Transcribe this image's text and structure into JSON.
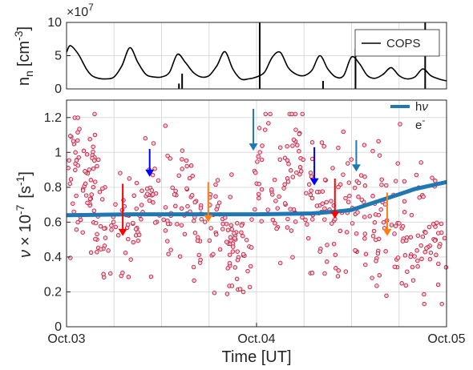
{
  "chart_data": [
    {
      "type": "line",
      "panel": "top",
      "ylabel": "n_n [cm^-3]",
      "ylabel_main": "n",
      "ylabel_sub": "n",
      "ylabel_unit": "[cm",
      "ylabel_exp": "-3",
      "ylabel_close": "]",
      "y_multiplier": "×10",
      "y_multiplier_exp": "7",
      "ylim": [
        0,
        10
      ],
      "yticks": [
        "0",
        "5",
        "10"
      ],
      "xlim": [
        0,
        48
      ],
      "grid": true,
      "legend_position": "top-right",
      "series": [
        {
          "name": "COPS",
          "color": "#000000",
          "x": [
            0,
            0.5,
            1.5,
            2.5,
            3.2,
            4,
            5,
            6,
            7,
            8,
            9,
            10,
            11,
            12,
            13,
            14,
            15,
            16,
            17,
            18,
            19,
            20,
            21,
            22,
            23,
            24,
            25,
            26,
            27,
            28,
            29,
            30,
            31,
            32,
            33,
            34,
            35,
            36,
            37,
            38,
            39,
            40,
            41,
            42,
            43,
            44,
            45,
            46,
            47,
            48
          ],
          "y": [
            5.5,
            6.5,
            5.2,
            3.0,
            2.0,
            1.6,
            1.5,
            1.8,
            3.5,
            6.2,
            4.0,
            2.2,
            1.8,
            1.8,
            2.5,
            5.2,
            4.0,
            2.5,
            1.8,
            2.0,
            3.5,
            5.6,
            3.0,
            1.5,
            1.5,
            1.8,
            2.5,
            4.8,
            5.5,
            3.2,
            2.2,
            2.0,
            2.8,
            5.0,
            3.0,
            1.8,
            2.0,
            4.8,
            3.8,
            2.0,
            1.6,
            2.2,
            3.2,
            2.0,
            1.5,
            1.8,
            3.0,
            2.0,
            1.5,
            1.2
          ]
        }
      ],
      "spikes": [
        {
          "x": 14.2,
          "y": 0.8
        },
        {
          "x": 14.6,
          "y": 2.3
        },
        {
          "x": 24.4,
          "y": 10
        },
        {
          "x": 32.4,
          "y": 1.2
        },
        {
          "x": 36.5,
          "y": 6.0
        },
        {
          "x": 45.3,
          "y": 10
        }
      ]
    },
    {
      "type": "scatter",
      "panel": "bottom",
      "ylabel": "ν × 10^-7 [s^-1]",
      "ylabel_nu": "ν",
      "ylabel_times": "×",
      "ylabel_ten": "10",
      "ylabel_exp": "-7",
      "ylabel_unit": "[s",
      "ylabel_unit_exp": "-1",
      "ylabel_close": "]",
      "xlabel": "Time [UT]",
      "xlim": [
        0,
        48
      ],
      "ylim": [
        0,
        1.3
      ],
      "yticks": [
        "0",
        "0.2",
        "0.4",
        "0.6",
        "0.8",
        "1",
        "1.2"
      ],
      "xticks": [
        {
          "x": 0,
          "label": "Oct.03"
        },
        {
          "x": 24,
          "label": "Oct.04"
        },
        {
          "x": 48,
          "label": "Oct.05"
        }
      ],
      "grid": true,
      "legend_position": "top-right",
      "series": [
        {
          "name": "hν",
          "legend_main": "h",
          "legend_greek": "ν",
          "color": "#1f77b4",
          "kind": "line",
          "x": [
            0,
            8,
            16,
            24,
            31,
            34,
            36,
            38,
            40,
            42,
            44,
            46,
            48
          ],
          "y": [
            0.64,
            0.645,
            0.645,
            0.645,
            0.65,
            0.66,
            0.67,
            0.7,
            0.73,
            0.76,
            0.79,
            0.81,
            0.83
          ]
        },
        {
          "name": "e-",
          "legend_main": "e",
          "legend_sup": "-",
          "color": "#c02040",
          "kind": "points",
          "clusters": [
            {
              "x0": 0,
              "x1": 5,
              "mean": 0.82,
              "spread": 0.42,
              "n": 70
            },
            {
              "x0": 3,
              "x1": 9,
              "mean": 0.58,
              "spread": 0.32,
              "n": 50
            },
            {
              "x0": 9,
              "x1": 16,
              "mean": 0.72,
              "spread": 0.4,
              "n": 70
            },
            {
              "x0": 16,
              "x1": 21,
              "mean": 0.58,
              "spread": 0.34,
              "n": 50
            },
            {
              "x0": 20,
              "x1": 23.5,
              "mean": 0.42,
              "spread": 0.28,
              "n": 40
            },
            {
              "x0": 23.5,
              "x1": 30,
              "mean": 0.9,
              "spread": 0.46,
              "n": 75
            },
            {
              "x0": 30,
              "x1": 36,
              "mean": 0.7,
              "spread": 0.4,
              "n": 65
            },
            {
              "x0": 36,
              "x1": 42,
              "mean": 0.6,
              "spread": 0.44,
              "n": 65
            },
            {
              "x0": 42,
              "x1": 48,
              "mean": 0.5,
              "spread": 0.38,
              "n": 65
            }
          ]
        }
      ],
      "arrows": [
        {
          "x": 7.1,
          "y_from": 0.82,
          "y_to": 0.52,
          "color": "#ff0000"
        },
        {
          "x": 10.5,
          "y_from": 1.02,
          "y_to": 0.86,
          "color": "#0000ff"
        },
        {
          "x": 17.9,
          "y_from": 0.83,
          "y_to": 0.6,
          "color": "#ff7f0e"
        },
        {
          "x": 23.6,
          "y_from": 1.25,
          "y_to": 1.01,
          "color": "#1f77b4"
        },
        {
          "x": 31.3,
          "y_from": 1.03,
          "y_to": 0.81,
          "color": "#0000ff"
        },
        {
          "x": 33.9,
          "y_from": 0.85,
          "y_to": 0.62,
          "color": "#ff0000"
        },
        {
          "x": 36.6,
          "y_from": 1.07,
          "y_to": 0.89,
          "color": "#1f77b4"
        },
        {
          "x": 40.5,
          "y_from": 0.77,
          "y_to": 0.52,
          "color": "#ff7f0e"
        }
      ]
    }
  ]
}
